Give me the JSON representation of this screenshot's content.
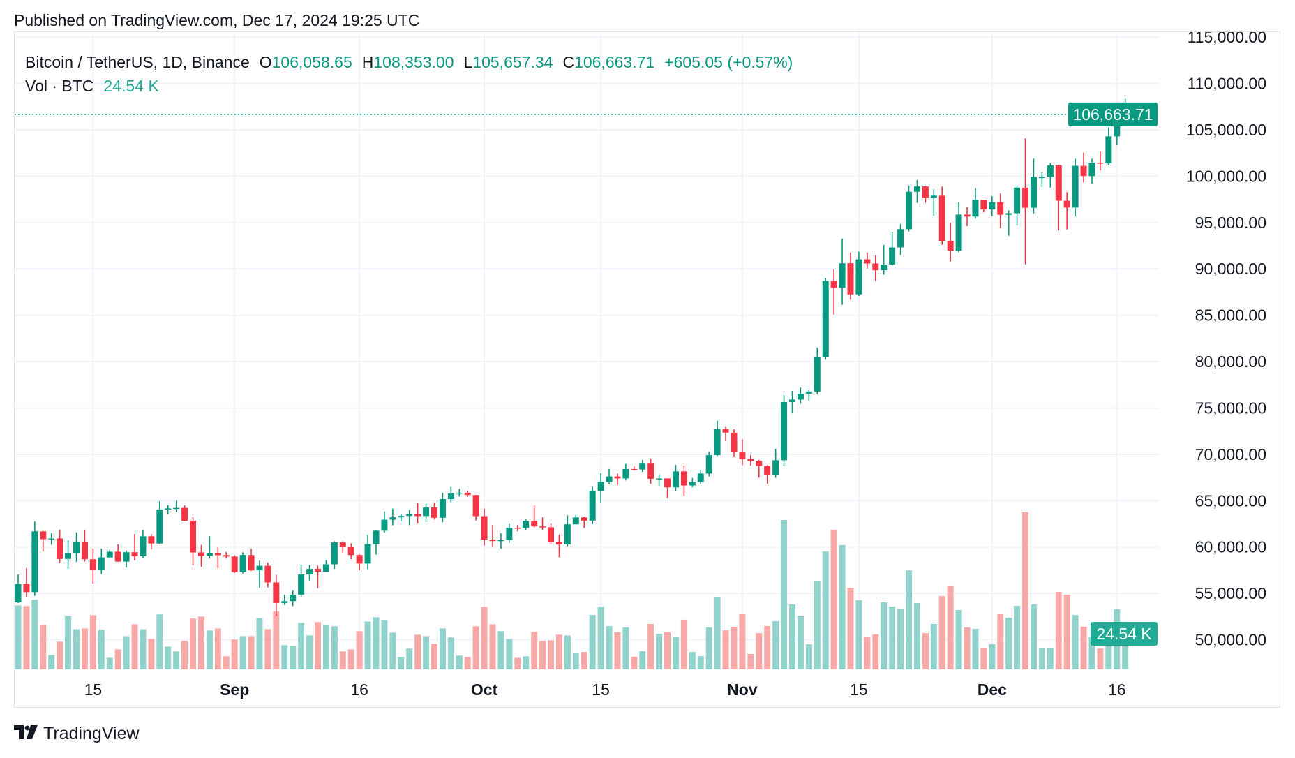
{
  "header": {
    "published": "Published on TradingView.com, Dec 17, 2024 19:25 UTC"
  },
  "legend": {
    "symbol": "Bitcoin / TetherUS, 1D, Binance",
    "o_label": "O",
    "o_value": "106,058.65",
    "h_label": "H",
    "h_value": "108,353.00",
    "l_label": "L",
    "l_value": "105,657.34",
    "c_label": "C",
    "c_value": "106,663.71",
    "change": "+605.05 (+0.57%)",
    "vol_label": "Vol · BTC",
    "vol_value": "24.54 K"
  },
  "price_axis": {
    "ticks": [
      "115,000.00",
      "110,000.00",
      "105,000.00",
      "100,000.00",
      "95,000.00",
      "90,000.00",
      "85,000.00",
      "80,000.00",
      "75,000.00",
      "70,000.00",
      "65,000.00",
      "60,000.00",
      "55,000.00",
      "50,000.00"
    ],
    "last_price_label": "106,663.71",
    "last_volume_label": "24.54 K"
  },
  "time_axis": {
    "ticks": [
      {
        "label": "15",
        "date": "2024-08-15",
        "bold": false
      },
      {
        "label": "Sep",
        "date": "2024-09-01",
        "bold": true
      },
      {
        "label": "16",
        "date": "2024-09-16",
        "bold": false
      },
      {
        "label": "Oct",
        "date": "2024-10-01",
        "bold": true
      },
      {
        "label": "15",
        "date": "2024-10-15",
        "bold": false
      },
      {
        "label": "Nov",
        "date": "2024-11-01",
        "bold": true
      },
      {
        "label": "15",
        "date": "2024-11-15",
        "bold": false
      },
      {
        "label": "Dec",
        "date": "2024-12-01",
        "bold": true
      },
      {
        "label": "16",
        "date": "2024-12-16",
        "bold": false
      }
    ]
  },
  "footer": {
    "brand": "TradingView"
  },
  "colors": {
    "up": "#089981",
    "down": "#f23645",
    "vol_up": "#92d2cc",
    "vol_down": "#f7a9a7",
    "grid": "#f0f3fa",
    "text": "#131722"
  },
  "chart_data": {
    "type": "candlestick",
    "title": "Bitcoin / TetherUS, 1D, Binance",
    "ylim": [
      47000,
      115000
    ],
    "y_scale": "linear",
    "grid": true,
    "last_price": 106663.71,
    "columns": [
      "date",
      "open",
      "high",
      "low",
      "close",
      "volume_k"
    ],
    "rows": [
      [
        "2024-08-06",
        54018,
        57040,
        53950,
        56022,
        44.1
      ],
      [
        "2024-08-07",
        56022,
        57736,
        54558,
        55134,
        43.6
      ],
      [
        "2024-08-08",
        55134,
        62745,
        54730,
        61685,
        48.0
      ],
      [
        "2024-08-09",
        61685,
        61744,
        59535,
        60837,
        30.6
      ],
      [
        "2024-08-10",
        60837,
        61470,
        60242,
        60923,
        9.9
      ],
      [
        "2024-08-11",
        60923,
        61858,
        58286,
        58712,
        19.1
      ],
      [
        "2024-08-12",
        58712,
        60711,
        57642,
        59346,
        36.9
      ],
      [
        "2024-08-13",
        59346,
        61578,
        58392,
        60587,
        27.7
      ],
      [
        "2024-08-14",
        60587,
        61800,
        58433,
        58683,
        28.2
      ],
      [
        "2024-08-15",
        58683,
        59849,
        56078,
        57541,
        37.4
      ],
      [
        "2024-08-16",
        57541,
        59817,
        57098,
        58874,
        27.3
      ],
      [
        "2024-08-17",
        58874,
        59700,
        58785,
        59491,
        8.0
      ],
      [
        "2024-08-18",
        59491,
        60284,
        58408,
        58427,
        13.8
      ],
      [
        "2024-08-19",
        58427,
        59617,
        57787,
        59438,
        22.9
      ],
      [
        "2024-08-20",
        59438,
        61400,
        58548,
        59013,
        31.1
      ],
      [
        "2024-08-21",
        59013,
        61820,
        58783,
        61157,
        27.7
      ],
      [
        "2024-08-22",
        61157,
        61400,
        59724,
        60381,
        21.0
      ],
      [
        "2024-08-23",
        60381,
        64955,
        60342,
        64038,
        37.9
      ],
      [
        "2024-08-24",
        64038,
        64500,
        63545,
        64158,
        15.7
      ],
      [
        "2024-08-25",
        64158,
        65000,
        63775,
        64220,
        12.4
      ],
      [
        "2024-08-26",
        64220,
        64481,
        62800,
        62834,
        19.6
      ],
      [
        "2024-08-27",
        62834,
        63212,
        58034,
        59416,
        35.0
      ],
      [
        "2024-08-28",
        59416,
        60234,
        57860,
        59034,
        36.4
      ],
      [
        "2024-08-29",
        59034,
        61166,
        58738,
        59359,
        26.8
      ],
      [
        "2024-08-30",
        59359,
        59944,
        57700,
        59123,
        28.2
      ],
      [
        "2024-08-31",
        59123,
        59462,
        58744,
        58973,
        9.0
      ],
      [
        "2024-09-01",
        58973,
        59100,
        57200,
        57301,
        20.5
      ],
      [
        "2024-09-02",
        57301,
        59425,
        57128,
        59132,
        22.9
      ],
      [
        "2024-09-03",
        59132,
        59809,
        57415,
        57487,
        22.9
      ],
      [
        "2024-09-04",
        57487,
        58519,
        55606,
        57970,
        35.4
      ],
      [
        "2024-09-05",
        57970,
        58327,
        55643,
        56180,
        27.7
      ],
      [
        "2024-09-06",
        56180,
        57000,
        52550,
        53962,
        40.0
      ],
      [
        "2024-09-07",
        53962,
        54850,
        53745,
        54160,
        16.7
      ],
      [
        "2024-09-08",
        54160,
        55318,
        53629,
        54869,
        16.2
      ],
      [
        "2024-09-09",
        54869,
        58088,
        54591,
        57042,
        32.1
      ],
      [
        "2024-09-10",
        57042,
        58044,
        56386,
        57635,
        23.4
      ],
      [
        "2024-09-11",
        57635,
        57981,
        55545,
        57338,
        32.6
      ],
      [
        "2024-09-12",
        57338,
        58588,
        57324,
        58132,
        30.6
      ],
      [
        "2024-09-13",
        58132,
        60625,
        57632,
        60498,
        29.7
      ],
      [
        "2024-09-14",
        60498,
        60610,
        59400,
        59993,
        12.4
      ],
      [
        "2024-09-15",
        59993,
        60395,
        58691,
        59132,
        13.8
      ],
      [
        "2024-09-16",
        59132,
        59210,
        57493,
        58213,
        26.3
      ],
      [
        "2024-09-17",
        58213,
        61320,
        57610,
        60309,
        33.0
      ],
      [
        "2024-09-18",
        60309,
        61786,
        59174,
        61759,
        35.9
      ],
      [
        "2024-09-19",
        61759,
        63850,
        61555,
        62947,
        34.0
      ],
      [
        "2024-09-20",
        62947,
        64133,
        62350,
        63201,
        25.3
      ],
      [
        "2024-09-21",
        63201,
        63559,
        62758,
        63348,
        8.5
      ],
      [
        "2024-09-22",
        63348,
        64000,
        62357,
        63578,
        14.3
      ],
      [
        "2024-09-23",
        63578,
        64745,
        62538,
        63339,
        23.9
      ],
      [
        "2024-09-24",
        63339,
        64688,
        62700,
        64262,
        22.9
      ],
      [
        "2024-09-25",
        64262,
        64817,
        62947,
        63152,
        17.6
      ],
      [
        "2024-09-26",
        63152,
        65839,
        62670,
        65173,
        28.2
      ],
      [
        "2024-09-27",
        65173,
        66498,
        64819,
        65769,
        22.0
      ],
      [
        "2024-09-28",
        65769,
        66260,
        65422,
        65858,
        9.5
      ],
      [
        "2024-09-29",
        65858,
        66076,
        65432,
        65602,
        8.5
      ],
      [
        "2024-09-30",
        65602,
        65618,
        62856,
        63327,
        29.7
      ],
      [
        "2024-10-01",
        63327,
        64130,
        60164,
        60805,
        43.1
      ],
      [
        "2024-10-02",
        60805,
        62370,
        59996,
        60649,
        31.1
      ],
      [
        "2024-10-03",
        60649,
        61477,
        59828,
        60752,
        26.3
      ],
      [
        "2024-10-04",
        60752,
        62484,
        60459,
        62086,
        21.0
      ],
      [
        "2024-10-05",
        62086,
        62370,
        61689,
        62058,
        8.0
      ],
      [
        "2024-10-06",
        62058,
        62975,
        61798,
        62819,
        9.0
      ],
      [
        "2024-10-07",
        62819,
        64478,
        62128,
        62224,
        25.8
      ],
      [
        "2024-10-08",
        62224,
        63200,
        61860,
        62131,
        19.6
      ],
      [
        "2024-10-09",
        62131,
        62543,
        60300,
        60582,
        20.0
      ],
      [
        "2024-10-10",
        60582,
        61320,
        58895,
        60274,
        23.9
      ],
      [
        "2024-10-11",
        60274,
        63417,
        60080,
        62445,
        23.4
      ],
      [
        "2024-10-12",
        62445,
        63480,
        62445,
        63193,
        11.1
      ],
      [
        "2024-10-13",
        63193,
        63285,
        62050,
        62851,
        12.0
      ],
      [
        "2024-10-14",
        62851,
        66500,
        62457,
        66046,
        37.5
      ],
      [
        "2024-10-15",
        66046,
        67950,
        64800,
        67041,
        43.3
      ],
      [
        "2024-10-16",
        67041,
        68424,
        66750,
        67612,
        29.8
      ],
      [
        "2024-10-17",
        67612,
        67939,
        66666,
        67399,
        25.5
      ],
      [
        "2024-10-18",
        67399,
        68969,
        67177,
        68418,
        28.9
      ],
      [
        "2024-10-19",
        68418,
        68694,
        68250,
        68362,
        8.7
      ],
      [
        "2024-10-20",
        68362,
        69400,
        68100,
        69001,
        12.5
      ],
      [
        "2024-10-21",
        69001,
        69500,
        66835,
        67367,
        31.3
      ],
      [
        "2024-10-22",
        67367,
        67836,
        66571,
        67400,
        24.5
      ],
      [
        "2024-10-23",
        67400,
        67400,
        65260,
        66432,
        25.5
      ],
      [
        "2024-10-24",
        66432,
        68850,
        66044,
        68161,
        22.6
      ],
      [
        "2024-10-25",
        68161,
        68770,
        65500,
        66642,
        34.2
      ],
      [
        "2024-10-26",
        66642,
        67454,
        66439,
        67014,
        12.0
      ],
      [
        "2024-10-27",
        67014,
        68332,
        66800,
        67929,
        9.1
      ],
      [
        "2024-10-28",
        67929,
        70270,
        67620,
        69907,
        28.9
      ],
      [
        "2024-10-29",
        69907,
        73620,
        69730,
        72720,
        49.6
      ],
      [
        "2024-10-30",
        72720,
        72961,
        71436,
        72339,
        26.9
      ],
      [
        "2024-10-31",
        72339,
        72700,
        69685,
        70215,
        29.4
      ],
      [
        "2024-11-01",
        70215,
        71632,
        68820,
        69482,
        38.0
      ],
      [
        "2024-11-02",
        69482,
        69900,
        68785,
        69289,
        10.6
      ],
      [
        "2024-11-03",
        69289,
        69388,
        67478,
        68741,
        25.0
      ],
      [
        "2024-11-04",
        68741,
        68830,
        66835,
        67811,
        29.8
      ],
      [
        "2024-11-05",
        67811,
        70577,
        67458,
        69359,
        33.2
      ],
      [
        "2024-11-06",
        69359,
        76400,
        68700,
        75640,
        103.0
      ],
      [
        "2024-11-07",
        75640,
        76849,
        74416,
        75904,
        44.8
      ],
      [
        "2024-11-08",
        75904,
        77199,
        75462,
        76545,
        36.6
      ],
      [
        "2024-11-09",
        76545,
        76932,
        75773,
        76778,
        17.3
      ],
      [
        "2024-11-10",
        76778,
        81500,
        76492,
        80474,
        61.1
      ],
      [
        "2024-11-11",
        80474,
        89000,
        80216,
        88701,
        81.3
      ],
      [
        "2024-11-12",
        88701,
        89956,
        85072,
        87955,
        96.2
      ],
      [
        "2024-11-13",
        87955,
        93265,
        86127,
        90606,
        85.7
      ],
      [
        "2024-11-14",
        90606,
        91765,
        86668,
        87250,
        56.3
      ],
      [
        "2024-11-15",
        87250,
        91850,
        87074,
        91032,
        47.6
      ],
      [
        "2024-11-16",
        91032,
        91779,
        90056,
        90587,
        22.6
      ],
      [
        "2024-11-17",
        90587,
        91449,
        88722,
        89855,
        24.1
      ],
      [
        "2024-11-18",
        89855,
        92594,
        89376,
        90465,
        46.2
      ],
      [
        "2024-11-19",
        90465,
        94002,
        90357,
        92310,
        43.3
      ],
      [
        "2024-11-20",
        92310,
        94831,
        91500,
        94287,
        41.9
      ],
      [
        "2024-11-21",
        94287,
        98988,
        94040,
        98318,
        68.3
      ],
      [
        "2024-11-22",
        98318,
        99588,
        97122,
        98892,
        45.7
      ],
      [
        "2024-11-23",
        98892,
        98908,
        97136,
        97672,
        25.0
      ],
      [
        "2024-11-24",
        97672,
        98564,
        95734,
        97900,
        31.3
      ],
      [
        "2024-11-25",
        97900,
        98871,
        92600,
        93010,
        50.5
      ],
      [
        "2024-11-26",
        93010,
        94973,
        90791,
        91965,
        57.3
      ],
      [
        "2024-11-27",
        91965,
        97208,
        91792,
        95863,
        40.9
      ],
      [
        "2024-11-28",
        95863,
        96650,
        94610,
        95643,
        28.9
      ],
      [
        "2024-11-29",
        95643,
        98693,
        95407,
        97460,
        27.9
      ],
      [
        "2024-11-30",
        97460,
        97463,
        96092,
        96407,
        14.9
      ],
      [
        "2024-12-01",
        96407,
        97836,
        95693,
        97185,
        17.3
      ],
      [
        "2024-12-02",
        97185,
        98130,
        94395,
        95840,
        38.0
      ],
      [
        "2024-12-03",
        95840,
        96305,
        93578,
        96002,
        35.6
      ],
      [
        "2024-12-04",
        96002,
        99000,
        94660,
        98768,
        43.8
      ],
      [
        "2024-12-05",
        98768,
        104088,
        90500,
        96593,
        108.3
      ],
      [
        "2024-12-06",
        96593,
        101898,
        95981,
        99920,
        44.8
      ],
      [
        "2024-12-07",
        99920,
        100439,
        98844,
        99923,
        14.9
      ],
      [
        "2024-12-08",
        99923,
        101400,
        98771,
        101170,
        14.9
      ],
      [
        "2024-12-09",
        101170,
        101198,
        94150,
        97355,
        53.4
      ],
      [
        "2024-12-10",
        97355,
        98270,
        94256,
        96612,
        51.5
      ],
      [
        "2024-12-11",
        96612,
        101895,
        95658,
        101116,
        37.5
      ],
      [
        "2024-12-12",
        101116,
        102540,
        99311,
        100011,
        29.4
      ],
      [
        "2024-12-13",
        100011,
        101895,
        99205,
        101459,
        22.1
      ],
      [
        "2024-12-14",
        101459,
        102650,
        100609,
        101372,
        14.4
      ],
      [
        "2024-12-15",
        101372,
        105250,
        101227,
        104298,
        22.6
      ],
      [
        "2024-12-16",
        104298,
        107793,
        103333,
        106058.65,
        41.4
      ],
      [
        "2024-12-17",
        106058.65,
        108353.0,
        105657.34,
        106663.71,
        24.54
      ]
    ]
  }
}
